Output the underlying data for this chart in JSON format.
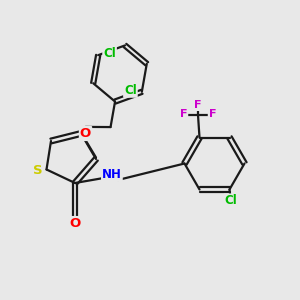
{
  "bg_color": "#e8e8e8",
  "bond_color": "#1a1a1a",
  "bond_width": 1.6,
  "atom_colors": {
    "S": "#cccc00",
    "O": "#ff0000",
    "N": "#0000ff",
    "F": "#cc00cc",
    "Cl": "#00bb00",
    "C": "#1a1a1a",
    "H": "#aaaaaa"
  },
  "fs": 8.5
}
